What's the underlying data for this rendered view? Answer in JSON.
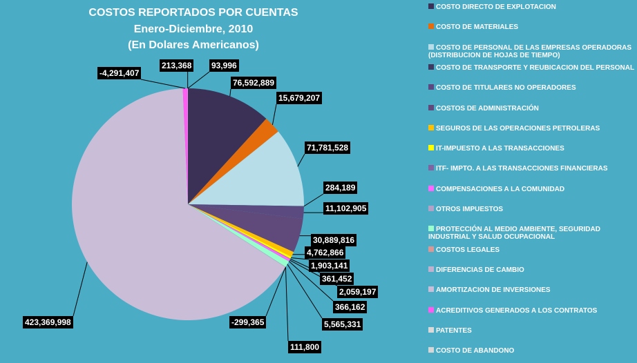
{
  "chart_data": {
    "type": "pie",
    "title": "COSTOS REPORTADOS  POR CUENTAS",
    "subtitle": [
      "Enero-Diciembre, 2010",
      "(En Dolares Americanos)"
    ],
    "categories": [
      "COSTO DIRECTO DE EXPLOTACION",
      "COSTO DE MATERIALES",
      "COSTO DE PERSONAL DE LAS EMPRESAS OPERADORAS\n(DISTRIBUCION DE HOJAS DE TIEMPO)",
      "COSTO DE TRANSPORTE Y REUBICACION DEL PERSONAL",
      "COSTO DE TITULARES NO OPERADORES",
      "COSTOS DE ADMINISTRACIÓN",
      "SEGUROS DE LAS OPERACIONES PETROLERAS",
      "IT-IMPUESTO A LAS TRANSACCIONES",
      "ITF- IMPTO. A LAS TRANSACCIONES FINANCIERAS",
      "COMPENSACIONES A LA COMUNIDAD",
      "OTROS IMPUESTOS",
      "PROTECCIÓN AL MEDIO AMBIENTE, SEGURIDAD\nINDUSTRIAL Y SALUD OCUPACIONAL",
      "COSTOS LEGALES",
      "DIFERENCIAS DE CAMBIO",
      "AMORTIZACION DE INVERSIONES",
      "ACREDITIVOS  GENERADOS A LOS CONTRATOS",
      "PATENTES",
      "COSTO DE ABANDONO"
    ],
    "values": [
      76592889,
      15679207,
      71781528,
      284189,
      11102905,
      30889816,
      4762866,
      1903141,
      361452,
      2059197,
      366162,
      5565331,
      111800,
      -299365,
      423369998,
      -4291407,
      213368,
      93996
    ],
    "value_labels": [
      "76,592,889",
      "15,679,207",
      "71,781,528",
      "284,189",
      "11,102,905",
      "30,889,816",
      "4,762,866",
      "1,903,141",
      "361,452",
      "2,059,197",
      "366,162",
      "5,565,331",
      "111,800",
      "-299,365",
      "423,369,998",
      "-4,291,407",
      "213,368",
      "93,996"
    ],
    "colors": [
      "#3b3156",
      "#e46c0a",
      "#b7dde8",
      "#3f3a60",
      "#5a4a80",
      "#604a7b",
      "#ffc000",
      "#ffff00",
      "#8064a2",
      "#ff66ff",
      "#b3a2c7",
      "#99ffcc",
      "#d99795",
      "#bfb2cf",
      "#c9bdd8",
      "#ff5cf2",
      "#d9d9d9",
      "#d6d6d6"
    ]
  }
}
